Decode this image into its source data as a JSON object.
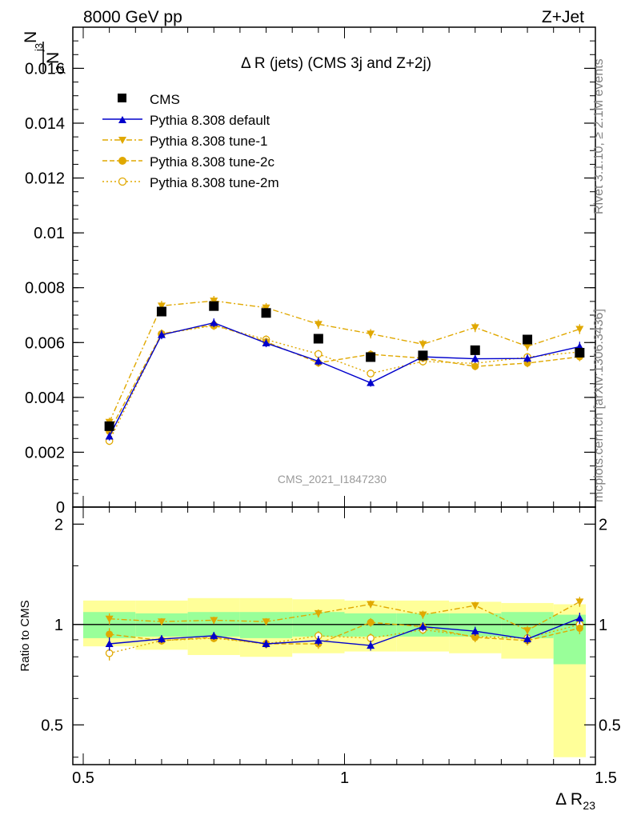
{
  "header": {
    "energy_label": "8000 GeV pp",
    "process_label": "Z+Jet"
  },
  "side_text": {
    "rivet": "Rivet 3.1.10, ≥ 2.1M events",
    "mcplots": "mcplots.cern.ch [arXiv:1306.3436]"
  },
  "colors": {
    "cms": "#000000",
    "default": "#0000cc",
    "tune": "#e0a800",
    "band_green": "#99ff99",
    "band_yellow": "#ffff99"
  },
  "chart_data": [
    {
      "type": "line",
      "title": "Δ R (jets) (CMS 3j and Z+2j)",
      "ylabel_num": "N",
      "ylabel_num_sub": "j3",
      "ylabel_den": "N",
      "ylabel_den_sub": "j2",
      "watermark": "CMS_2021_I1847230",
      "xlim": [
        0.5,
        1.5
      ],
      "ylim": [
        0,
        0.0175
      ],
      "yticks": [
        0,
        0.002,
        0.004,
        0.006,
        0.008,
        0.01,
        0.012,
        0.014,
        0.016
      ],
      "ytick_labels": [
        "0",
        "0.002",
        "0.004",
        "0.006",
        "0.008",
        "0.01",
        "0.012",
        "0.014",
        "0.016"
      ],
      "legend_position": "top-left",
      "x": [
        0.55,
        0.65,
        0.75,
        0.85,
        0.95,
        1.05,
        1.15,
        1.25,
        1.35,
        1.45
      ],
      "series": [
        {
          "key": "cms",
          "name": "CMS",
          "marker": "square",
          "values": [
            0.00295,
            0.00713,
            0.00733,
            0.00708,
            0.00614,
            0.00547,
            0.00553,
            0.00572,
            0.00611,
            0.00563
          ]
        },
        {
          "key": "default",
          "name": "Pythia 8.308 default",
          "marker": "triangle-up",
          "dash": "",
          "values": [
            0.00258,
            0.00628,
            0.00672,
            0.00598,
            0.00532,
            0.00453,
            0.00548,
            0.00541,
            0.00542,
            0.00585
          ],
          "err": [
            0.00015,
            0.00016,
            0.00016,
            0.00015,
            0.00015,
            0.00014,
            0.00015,
            0.00015,
            0.00015,
            0.00018
          ]
        },
        {
          "key": "tune1",
          "name": "Pythia 8.308 tune-1",
          "marker": "triangle-down",
          "dash": "7,3,2,3",
          "values": [
            0.0031,
            0.00734,
            0.00752,
            0.00727,
            0.00667,
            0.00632,
            0.00594,
            0.00655,
            0.00586,
            0.00649
          ],
          "err": [
            0.00016,
            0.00018,
            0.00018,
            0.00017,
            0.00017,
            0.00017,
            0.00016,
            0.00017,
            0.00016,
            0.00018
          ]
        },
        {
          "key": "tune2c",
          "name": "Pythia 8.308 tune-2c",
          "marker": "circle-filled",
          "dash": "6,3",
          "values": [
            0.00276,
            0.00632,
            0.00665,
            0.00603,
            0.00526,
            0.00557,
            0.00543,
            0.00513,
            0.00525,
            0.00548
          ],
          "err": [
            0.00015,
            0.00016,
            0.00016,
            0.00015,
            0.00015,
            0.00015,
            0.00015,
            0.00014,
            0.00015,
            0.00016
          ]
        },
        {
          "key": "tune2m",
          "name": "Pythia 8.308 tune-2m",
          "marker": "circle-open",
          "dash": "2,3",
          "values": [
            0.00241,
            0.00631,
            0.00662,
            0.00611,
            0.00558,
            0.00487,
            0.00531,
            0.00524,
            0.00547,
            0.00566
          ],
          "err": [
            0.00014,
            0.00016,
            0.00016,
            0.00015,
            0.00015,
            0.00014,
            0.00015,
            0.00015,
            0.00015,
            0.00016
          ]
        }
      ]
    },
    {
      "type": "line",
      "ylabel": "Ratio to CMS",
      "xlabel": "Δ R",
      "xlabel_sub": "23",
      "xlim": [
        0.5,
        1.5
      ],
      "ylim": [
        0.38,
        2.25
      ],
      "log_y": true,
      "xticks": [
        0.5,
        1,
        1.5
      ],
      "xtick_labels": [
        "0.5",
        "1",
        "1.5"
      ],
      "yticks": [
        0.5,
        1,
        2
      ],
      "ytick_labels": [
        "0.5",
        "1",
        "2"
      ],
      "reference_line": 1,
      "bins": [
        [
          0.5,
          0.6
        ],
        [
          0.6,
          0.7
        ],
        [
          0.7,
          0.8
        ],
        [
          0.8,
          0.9
        ],
        [
          0.9,
          1.0
        ],
        [
          1.0,
          1.1
        ],
        [
          1.1,
          1.2
        ],
        [
          1.2,
          1.3
        ],
        [
          1.3,
          1.4
        ],
        [
          1.4,
          1.5
        ]
      ],
      "band_green": [
        [
          0.91,
          1.09
        ],
        [
          0.92,
          1.08
        ],
        [
          0.92,
          1.09
        ],
        [
          0.91,
          1.09
        ],
        [
          0.92,
          1.09
        ],
        [
          0.92,
          1.08
        ],
        [
          0.92,
          1.08
        ],
        [
          0.92,
          1.08
        ],
        [
          0.91,
          1.09
        ],
        [
          0.76,
          1.07
        ]
      ],
      "band_yellow": [
        [
          0.86,
          1.18
        ],
        [
          0.84,
          1.18
        ],
        [
          0.81,
          1.2
        ],
        [
          0.8,
          1.2
        ],
        [
          0.82,
          1.19
        ],
        [
          0.83,
          1.18
        ],
        [
          0.83,
          1.18
        ],
        [
          0.82,
          1.17
        ],
        [
          0.79,
          1.16
        ],
        [
          0.4,
          1.15
        ]
      ],
      "x": [
        0.55,
        0.65,
        0.75,
        0.85,
        0.95,
        1.05,
        1.15,
        1.25,
        1.35,
        1.45
      ],
      "series": [
        {
          "key": "default",
          "name": "Pythia 8.308 default",
          "values": [
            0.875,
            0.905,
            0.925,
            0.875,
            0.895,
            0.865,
            0.985,
            0.955,
            0.905,
            1.045
          ],
          "err": [
            0.04,
            0.025,
            0.025,
            0.025,
            0.03,
            0.03,
            0.03,
            0.03,
            0.03,
            0.04
          ]
        },
        {
          "key": "tune1",
          "name": "Pythia 8.308 tune-1",
          "values": [
            1.04,
            1.02,
            1.03,
            1.02,
            1.08,
            1.15,
            1.07,
            1.14,
            0.96,
            1.17
          ],
          "err": [
            0.04,
            0.025,
            0.025,
            0.025,
            0.03,
            0.03,
            0.03,
            0.03,
            0.03,
            0.04
          ]
        },
        {
          "key": "tune2c",
          "name": "Pythia 8.308 tune-2c",
          "values": [
            0.935,
            0.895,
            0.915,
            0.875,
            0.875,
            1.015,
            0.985,
            0.915,
            0.895,
            0.975
          ],
          "err": [
            0.04,
            0.025,
            0.025,
            0.025,
            0.03,
            0.03,
            0.03,
            0.03,
            0.03,
            0.04
          ]
        },
        {
          "key": "tune2m",
          "name": "Pythia 8.308 tune-2m",
          "values": [
            0.82,
            0.895,
            0.91,
            0.875,
            0.925,
            0.91,
            0.965,
            0.92,
            0.91,
            1.0
          ],
          "err": [
            0.04,
            0.025,
            0.025,
            0.025,
            0.03,
            0.03,
            0.03,
            0.03,
            0.03,
            0.04
          ]
        }
      ]
    }
  ]
}
